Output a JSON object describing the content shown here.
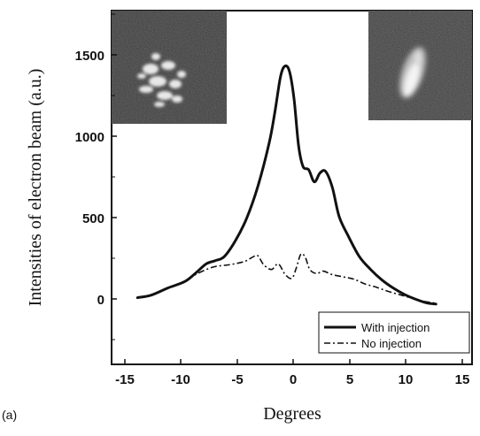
{
  "panel_label": "(a)",
  "chart_data": {
    "type": "line",
    "title": "",
    "xlabel": "Degrees",
    "ylabel": "Intensities of electron beam (a.u.)",
    "xlim": [
      -16,
      16
    ],
    "ylim": [
      -400,
      1800
    ],
    "xticks": [
      -15,
      -10,
      -5,
      0,
      5,
      10,
      15
    ],
    "yticks": [
      0,
      500,
      1000,
      1500
    ],
    "grid": false,
    "legend_position": "bottom-right",
    "series": [
      {
        "name": "With injection",
        "style": "solid",
        "color": "#111111",
        "points": [
          [
            -13.7,
            15
          ],
          [
            -12.5,
            30
          ],
          [
            -11.0,
            75
          ],
          [
            -9.5,
            115
          ],
          [
            -8.5,
            170
          ],
          [
            -7.6,
            225
          ],
          [
            -6.8,
            245
          ],
          [
            -6.0,
            270
          ],
          [
            -5.0,
            370
          ],
          [
            -4.0,
            510
          ],
          [
            -3.0,
            710
          ],
          [
            -2.0,
            980
          ],
          [
            -1.5,
            1170
          ],
          [
            -1.0,
            1390
          ],
          [
            -0.6,
            1455
          ],
          [
            -0.2,
            1420
          ],
          [
            0.2,
            1250
          ],
          [
            0.6,
            960
          ],
          [
            1.0,
            830
          ],
          [
            1.5,
            810
          ],
          [
            2.0,
            735
          ],
          [
            2.5,
            790
          ],
          [
            3.0,
            800
          ],
          [
            3.6,
            700
          ],
          [
            4.2,
            520
          ],
          [
            5.0,
            400
          ],
          [
            6.0,
            270
          ],
          [
            7.0,
            190
          ],
          [
            8.0,
            125
          ],
          [
            9.0,
            75
          ],
          [
            10.0,
            35
          ],
          [
            11.0,
            5
          ],
          [
            12.0,
            -18
          ],
          [
            12.8,
            -25
          ]
        ]
      },
      {
        "name": "No injection",
        "style": "dash-dot",
        "color": "#111111",
        "points": [
          [
            -13.7,
            15
          ],
          [
            -12.5,
            30
          ],
          [
            -11.0,
            75
          ],
          [
            -9.5,
            115
          ],
          [
            -8.5,
            160
          ],
          [
            -7.0,
            205
          ],
          [
            -5.5,
            220
          ],
          [
            -4.2,
            240
          ],
          [
            -3.4,
            270
          ],
          [
            -3.0,
            275
          ],
          [
            -2.5,
            220
          ],
          [
            -1.8,
            190
          ],
          [
            -1.2,
            225
          ],
          [
            -0.6,
            160
          ],
          [
            0.0,
            135
          ],
          [
            0.4,
            200
          ],
          [
            0.8,
            285
          ],
          [
            1.2,
            265
          ],
          [
            1.6,
            190
          ],
          [
            2.2,
            165
          ],
          [
            2.8,
            180
          ],
          [
            3.5,
            160
          ],
          [
            4.5,
            145
          ],
          [
            5.5,
            130
          ],
          [
            6.5,
            100
          ],
          [
            7.5,
            80
          ],
          [
            8.5,
            55
          ],
          [
            9.5,
            35
          ],
          [
            10.5,
            15
          ],
          [
            11.5,
            -5
          ],
          [
            12.8,
            -20
          ]
        ]
      }
    ],
    "insets": [
      {
        "name": "injected-beam-image",
        "position": "top-left"
      },
      {
        "name": "no-injection-beam-image",
        "position": "top-right"
      }
    ]
  }
}
